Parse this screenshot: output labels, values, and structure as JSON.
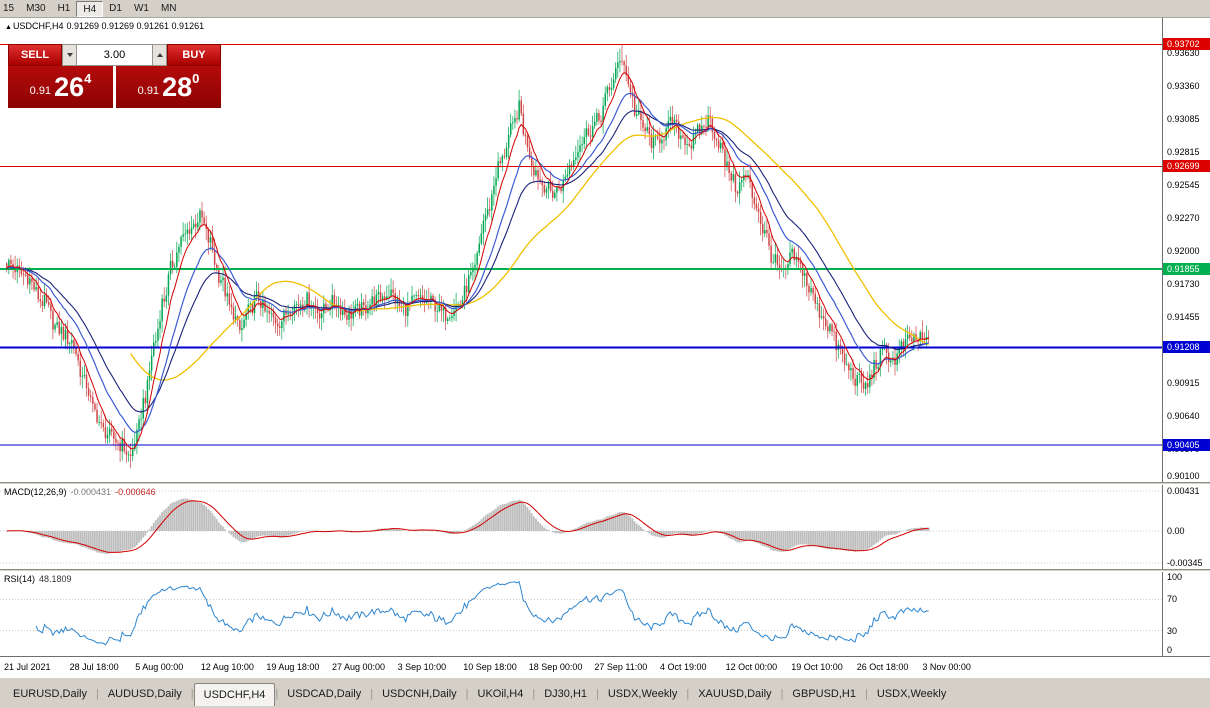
{
  "toolbar": {
    "timeframes": [
      "15",
      "M30",
      "H1",
      "H4",
      "D1",
      "W1",
      "MN"
    ],
    "active": "H4"
  },
  "chart": {
    "collapse_icon": "▲",
    "symbol": "USDCHF,H4",
    "ohlc": "0.91269 0.91269 0.91261 0.91261"
  },
  "trade_panel": {
    "sell_label": "SELL",
    "buy_label": "BUY",
    "volume": "3.00",
    "sell_price": {
      "prefix": "0.91",
      "big": "26",
      "sup": "4"
    },
    "buy_price": {
      "prefix": "0.91",
      "big": "28",
      "sup": "0"
    },
    "button_color": "#c80000",
    "panel_color": "#a80000"
  },
  "price_axis": {
    "gridlines": [
      {
        "label": "0.93630",
        "price": 0.9363
      },
      {
        "label": "0.93360",
        "price": 0.9336
      },
      {
        "label": "0.93085",
        "price": 0.93085
      },
      {
        "label": "0.92815",
        "price": 0.92815
      },
      {
        "label": "0.92545",
        "price": 0.92545
      },
      {
        "label": "0.92270",
        "price": 0.9227
      },
      {
        "label": "0.92000",
        "price": 0.92
      },
      {
        "label": "0.91730",
        "price": 0.9173
      },
      {
        "label": "0.91455",
        "price": 0.91455
      },
      {
        "label": "0.90915",
        "price": 0.90915
      },
      {
        "label": "0.90640",
        "price": 0.9064
      },
      {
        "label": "0.90370",
        "price": 0.9037
      },
      {
        "label": "0.90100",
        "price": 0.901
      }
    ],
    "levels": [
      {
        "label": "0.93702",
        "price": 0.93702,
        "color": "#dd0000",
        "width": 1
      },
      {
        "label": "0.92699",
        "price": 0.92699,
        "color": "#dd0000",
        "width": 1
      },
      {
        "label": "0.91855",
        "price": 0.91855,
        "color": "#00b050",
        "width": 2
      },
      {
        "label": "0.91208",
        "price": 0.91208,
        "color": "#0000d2",
        "width": 2
      },
      {
        "label": "0.90405",
        "price": 0.90405,
        "color": "#0000d2",
        "width": 1
      }
    ]
  },
  "indicators": {
    "macd": {
      "name": "MACD(12,26,9)",
      "value1": "-0.000431",
      "value2": "-0.000646",
      "axis": [
        {
          "label": "0.00431",
          "v": 0.00431
        },
        {
          "label": "0.00",
          "v": 0
        },
        {
          "label": "-0.00345",
          "v": -0.00345
        }
      ]
    },
    "rsi": {
      "name": "RSI(14)",
      "value": "48.1809",
      "axis": [
        {
          "label": "100",
          "v": 100
        },
        {
          "label": "70",
          "v": 70
        },
        {
          "label": "30",
          "v": 30
        },
        {
          "label": "0",
          "v": 0
        }
      ],
      "levels": [
        70,
        30
      ]
    }
  },
  "time_axis": {
    "labels": [
      "21 Jul 2021",
      "28 Jul 18:00",
      "5 Aug 00:00",
      "12 Aug 10:00",
      "19 Aug 18:00",
      "27 Aug 00:00",
      "3 Sep 10:00",
      "10 Sep 18:00",
      "18 Sep 00:00",
      "27 Sep 11:00",
      "4 Oct 19:00",
      "12 Oct 00:00",
      "19 Oct 10:00",
      "26 Oct 18:00",
      "3 Nov 00:00"
    ]
  },
  "tab_bar": {
    "tabs": [
      "EURUSD,Daily",
      "AUDUSD,Daily",
      "USDCHF,H4",
      "USDCAD,Daily",
      "USDCNH,Daily",
      "UKOil,H4",
      "DJ30,H1",
      "USDX,Weekly",
      "XAUUSD,Daily",
      "GBPUSD,H1",
      "USDX,Weekly"
    ],
    "active_index": 2
  },
  "chart_data": {
    "type": "candlestick",
    "symbol": "USDCHF",
    "timeframe": "H4",
    "y_min": 0.901,
    "y_max": 0.9392,
    "candle_count": 440,
    "colors": {
      "bull": "#00a651",
      "bear": "#cf4444",
      "macd_hist": "#bdbdbd",
      "macd_signal": "#d20000",
      "rsi_line": "#2e86d0"
    },
    "ma_lines": [
      {
        "name": "ma-slow-yellow",
        "color": "#f0c000",
        "width": 1.3,
        "type": "sma",
        "period": 60
      },
      {
        "name": "ma-mid-navy",
        "color": "#1a2278",
        "width": 1.1,
        "type": "ema",
        "period": 34
      },
      {
        "name": "ma-mid-blue",
        "color": "#3b5bd2",
        "width": 1.2,
        "type": "ema",
        "period": 20
      },
      {
        "name": "ma-fast-red",
        "color": "#d20000",
        "width": 1.0,
        "type": "ema",
        "period": 8
      }
    ],
    "price_path": [
      [
        0.0,
        0.919
      ],
      [
        0.02,
        0.918
      ],
      [
        0.04,
        0.9158
      ],
      [
        0.055,
        0.9136
      ],
      [
        0.07,
        0.9126
      ],
      [
        0.085,
        0.9092
      ],
      [
        0.095,
        0.9068
      ],
      [
        0.105,
        0.9052
      ],
      [
        0.115,
        0.9046
      ],
      [
        0.125,
        0.904
      ],
      [
        0.134,
        0.903
      ],
      [
        0.14,
        0.9046
      ],
      [
        0.15,
        0.908
      ],
      [
        0.16,
        0.9124
      ],
      [
        0.17,
        0.916
      ],
      [
        0.18,
        0.919
      ],
      [
        0.19,
        0.921
      ],
      [
        0.2,
        0.922
      ],
      [
        0.21,
        0.9228
      ],
      [
        0.22,
        0.9208
      ],
      [
        0.23,
        0.918
      ],
      [
        0.245,
        0.915
      ],
      [
        0.253,
        0.9134
      ],
      [
        0.262,
        0.915
      ],
      [
        0.272,
        0.9162
      ],
      [
        0.282,
        0.9148
      ],
      [
        0.295,
        0.9142
      ],
      [
        0.31,
        0.9155
      ],
      [
        0.325,
        0.916
      ],
      [
        0.34,
        0.915
      ],
      [
        0.355,
        0.9158
      ],
      [
        0.37,
        0.9148
      ],
      [
        0.385,
        0.9152
      ],
      [
        0.4,
        0.916
      ],
      [
        0.415,
        0.9166
      ],
      [
        0.43,
        0.9152
      ],
      [
        0.445,
        0.916
      ],
      [
        0.46,
        0.9158
      ],
      [
        0.475,
        0.9148
      ],
      [
        0.49,
        0.9156
      ],
      [
        0.505,
        0.918
      ],
      [
        0.52,
        0.923
      ],
      [
        0.535,
        0.9272
      ],
      [
        0.548,
        0.93
      ],
      [
        0.556,
        0.9318
      ],
      [
        0.563,
        0.9292
      ],
      [
        0.572,
        0.9268
      ],
      [
        0.582,
        0.9255
      ],
      [
        0.592,
        0.9248
      ],
      [
        0.602,
        0.9254
      ],
      [
        0.612,
        0.9272
      ],
      [
        0.622,
        0.929
      ],
      [
        0.632,
        0.93
      ],
      [
        0.642,
        0.9308
      ],
      [
        0.652,
        0.933
      ],
      [
        0.662,
        0.935
      ],
      [
        0.668,
        0.936
      ],
      [
        0.675,
        0.9336
      ],
      [
        0.683,
        0.9312
      ],
      [
        0.692,
        0.93
      ],
      [
        0.702,
        0.9288
      ],
      [
        0.712,
        0.9296
      ],
      [
        0.722,
        0.9306
      ],
      [
        0.732,
        0.9295
      ],
      [
        0.742,
        0.9288
      ],
      [
        0.752,
        0.93
      ],
      [
        0.762,
        0.9308
      ],
      [
        0.772,
        0.929
      ],
      [
        0.782,
        0.9268
      ],
      [
        0.792,
        0.9252
      ],
      [
        0.802,
        0.9262
      ],
      [
        0.812,
        0.924
      ],
      [
        0.822,
        0.9215
      ],
      [
        0.832,
        0.9192
      ],
      [
        0.842,
        0.918
      ],
      [
        0.852,
        0.9196
      ],
      [
        0.862,
        0.9186
      ],
      [
        0.872,
        0.9166
      ],
      [
        0.882,
        0.915
      ],
      [
        0.892,
        0.9138
      ],
      [
        0.902,
        0.912
      ],
      [
        0.912,
        0.9104
      ],
      [
        0.922,
        0.9094
      ],
      [
        0.932,
        0.9088
      ],
      [
        0.942,
        0.9106
      ],
      [
        0.952,
        0.9118
      ],
      [
        0.962,
        0.911
      ],
      [
        0.972,
        0.9122
      ],
      [
        0.982,
        0.9128
      ],
      [
        1.0,
        0.9126
      ]
    ],
    "spikes": [
      {
        "t": 0.134,
        "low": 0.9022
      },
      {
        "t": 0.556,
        "high": 0.9333
      },
      {
        "t": 0.667,
        "high": 0.937
      },
      {
        "t": 0.932,
        "low": 0.9081
      }
    ]
  }
}
